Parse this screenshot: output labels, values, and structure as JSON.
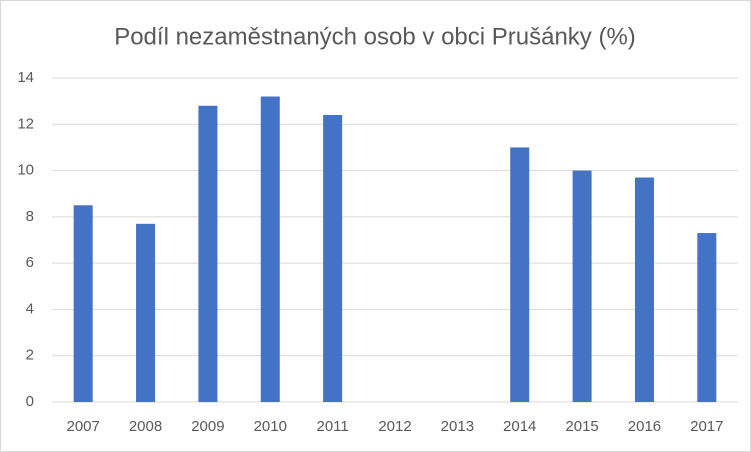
{
  "chart_data": {
    "type": "bar",
    "title": "Podíl nezaměstnaných osob v obci Prušánky (%)",
    "categories": [
      "2007",
      "2008",
      "2009",
      "2010",
      "2011",
      "2012",
      "2013",
      "2014",
      "2015",
      "2016",
      "2017"
    ],
    "values": [
      8.5,
      7.7,
      12.8,
      13.2,
      12.4,
      null,
      null,
      11.0,
      10.0,
      9.7,
      7.3
    ],
    "color": "#4472c4",
    "ylim": [
      0,
      14
    ],
    "yticks": [
      0,
      2,
      4,
      6,
      8,
      10,
      12,
      14
    ],
    "grid": true
  }
}
